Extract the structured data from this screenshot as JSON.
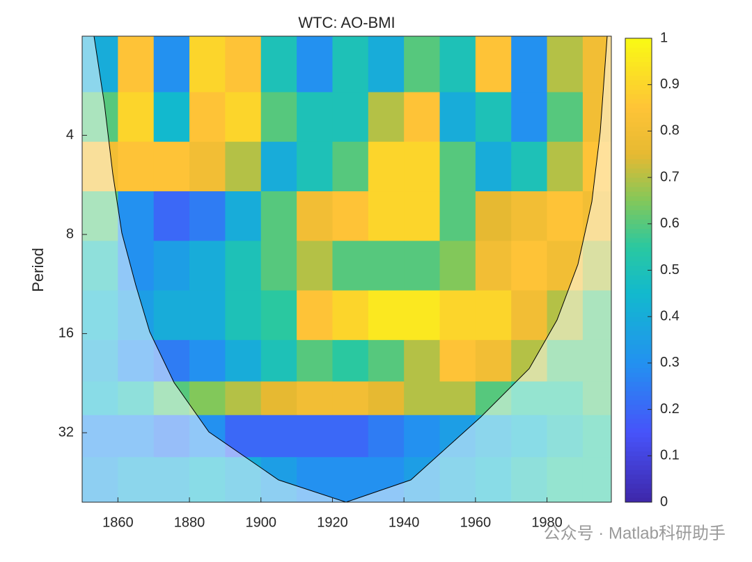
{
  "chart_data": {
    "type": "heatmap",
    "title": "WTC: AO-BMI",
    "ylabel": "Period",
    "xlim": [
      1850,
      1998
    ],
    "xticks": [
      1860,
      1880,
      1900,
      1920,
      1940,
      1960,
      1980
    ],
    "ylim": [
      2,
      52
    ],
    "yticks": [
      4,
      8,
      16,
      32
    ],
    "y_scale": "log",
    "y_reversed": true,
    "colormap": "parula",
    "clim": [
      0,
      1
    ],
    "cticks": [
      0,
      0.1,
      0.2,
      0.3,
      0.4,
      0.5,
      0.6,
      0.7,
      0.8,
      0.9,
      1
    ],
    "x": [
      1855,
      1865,
      1875,
      1885,
      1895,
      1905,
      1915,
      1925,
      1935,
      1945,
      1955,
      1965,
      1975,
      1985,
      1995
    ],
    "y": [
      2.5,
      3.5,
      5,
      7,
      10,
      14,
      20,
      25,
      32,
      45
    ],
    "z": [
      [
        0.4,
        0.85,
        0.3,
        0.9,
        0.85,
        0.5,
        0.3,
        0.5,
        0.4,
        0.6,
        0.5,
        0.85,
        0.3,
        0.7,
        0.8
      ],
      [
        0.6,
        0.9,
        0.45,
        0.85,
        0.9,
        0.6,
        0.5,
        0.5,
        0.7,
        0.85,
        0.4,
        0.5,
        0.3,
        0.6,
        0.8
      ],
      [
        0.8,
        0.85,
        0.85,
        0.8,
        0.7,
        0.4,
        0.5,
        0.6,
        0.9,
        0.9,
        0.6,
        0.4,
        0.5,
        0.7,
        0.85
      ],
      [
        0.6,
        0.3,
        0.2,
        0.25,
        0.4,
        0.6,
        0.8,
        0.85,
        0.9,
        0.9,
        0.6,
        0.75,
        0.8,
        0.85,
        0.8
      ],
      [
        0.5,
        0.3,
        0.35,
        0.4,
        0.5,
        0.6,
        0.7,
        0.6,
        0.6,
        0.6,
        0.65,
        0.8,
        0.85,
        0.8,
        0.7
      ],
      [
        0.45,
        0.35,
        0.4,
        0.4,
        0.5,
        0.55,
        0.85,
        0.9,
        0.95,
        0.95,
        0.9,
        0.9,
        0.8,
        0.7,
        0.6
      ],
      [
        0.4,
        0.3,
        0.25,
        0.3,
        0.4,
        0.5,
        0.6,
        0.55,
        0.6,
        0.7,
        0.85,
        0.8,
        0.7,
        0.6,
        0.6
      ],
      [
        0.45,
        0.5,
        0.6,
        0.65,
        0.7,
        0.75,
        0.8,
        0.8,
        0.75,
        0.7,
        0.7,
        0.6,
        0.55,
        0.55,
        0.6
      ],
      [
        0.3,
        0.3,
        0.25,
        0.3,
        0.2,
        0.2,
        0.2,
        0.2,
        0.25,
        0.3,
        0.35,
        0.4,
        0.45,
        0.5,
        0.55
      ],
      [
        0.35,
        0.4,
        0.4,
        0.45,
        0.4,
        0.35,
        0.3,
        0.3,
        0.3,
        0.35,
        0.4,
        0.45,
        0.5,
        0.55,
        0.55
      ]
    ]
  },
  "watermark": "公众号 · Matlab科研助手"
}
